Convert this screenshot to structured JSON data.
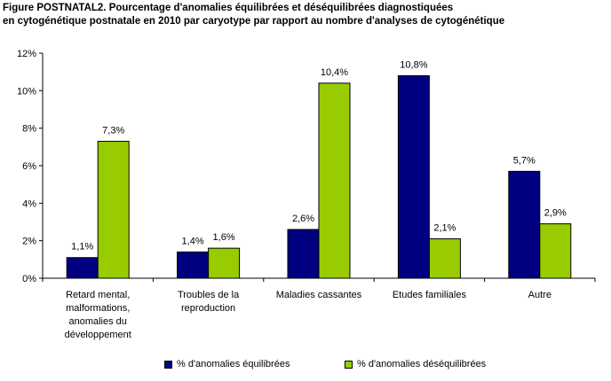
{
  "title": {
    "line1": "Figure POSTNATAL2. Pourcentage d'anomalies équilibrées et déséquilibrées diagnostiquées",
    "line2": "en cytogénétique postnatale en 2010 par caryotype par rapport au nombre d'analyses de cytogénétique"
  },
  "colors": {
    "series1": "#000080",
    "series2": "#99CC00",
    "grid": "#000000"
  },
  "chart_data": {
    "type": "bar",
    "categories": [
      [
        "Retard mental,",
        "malformations,",
        "anomalies du",
        "développement"
      ],
      [
        "Troubles de la",
        "reproduction"
      ],
      [
        "Maladies cassantes"
      ],
      [
        "Etudes familiales"
      ],
      [
        "Autre"
      ]
    ],
    "series": [
      {
        "name": "% d'anomalies équilibrées",
        "values": [
          1.1,
          1.4,
          2.6,
          10.8,
          5.7
        ],
        "labels": [
          "1,1%",
          "1,4%",
          "2,6%",
          "10,8%",
          "5,7%"
        ]
      },
      {
        "name": "% d'anomalies déséquilibrées",
        "values": [
          7.3,
          1.6,
          10.4,
          2.1,
          2.9
        ],
        "labels": [
          "7,3%",
          "1,6%",
          "10,4%",
          "2,1%",
          "2,9%"
        ]
      }
    ],
    "ylim": [
      0,
      12
    ],
    "yticks": [
      0,
      2,
      4,
      6,
      8,
      10,
      12
    ],
    "ytick_labels": [
      "0%",
      "2%",
      "4%",
      "6%",
      "8%",
      "10%",
      "12%"
    ],
    "grid": false,
    "legend_position": "bottom"
  }
}
